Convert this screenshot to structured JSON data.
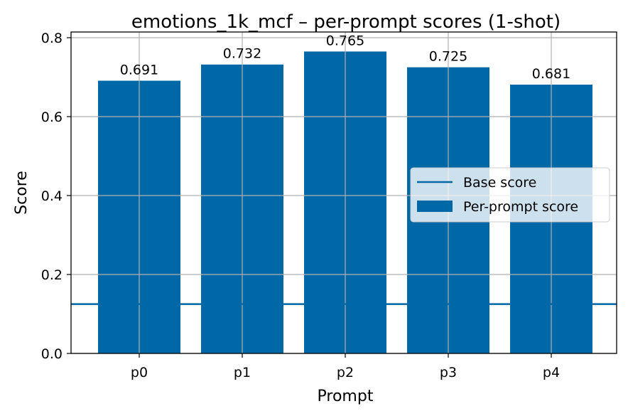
{
  "chart_data": {
    "type": "bar",
    "title": "emotions_1k_mcf – per-prompt scores (1-shot)",
    "xlabel": "Prompt",
    "ylabel": "Score",
    "categories": [
      "p0",
      "p1",
      "p2",
      "p3",
      "p4"
    ],
    "series": [
      {
        "name": "Per-prompt score",
        "values": [
          0.691,
          0.732,
          0.765,
          0.725,
          0.681
        ]
      }
    ],
    "data_labels": [
      "0.691",
      "0.732",
      "0.765",
      "0.725",
      "0.681"
    ],
    "reference_lines": [
      {
        "name": "Base score",
        "y": 0.125
      }
    ],
    "ylim": [
      0,
      0.8
    ],
    "yticks": [
      "0.0",
      "0.2",
      "0.4",
      "0.6",
      "0.8"
    ],
    "grid": true,
    "legend_position": "center-right",
    "colors": {
      "bar": "#0068a6",
      "base_line": "#0068a6",
      "grid": "#b0b0b0"
    }
  }
}
